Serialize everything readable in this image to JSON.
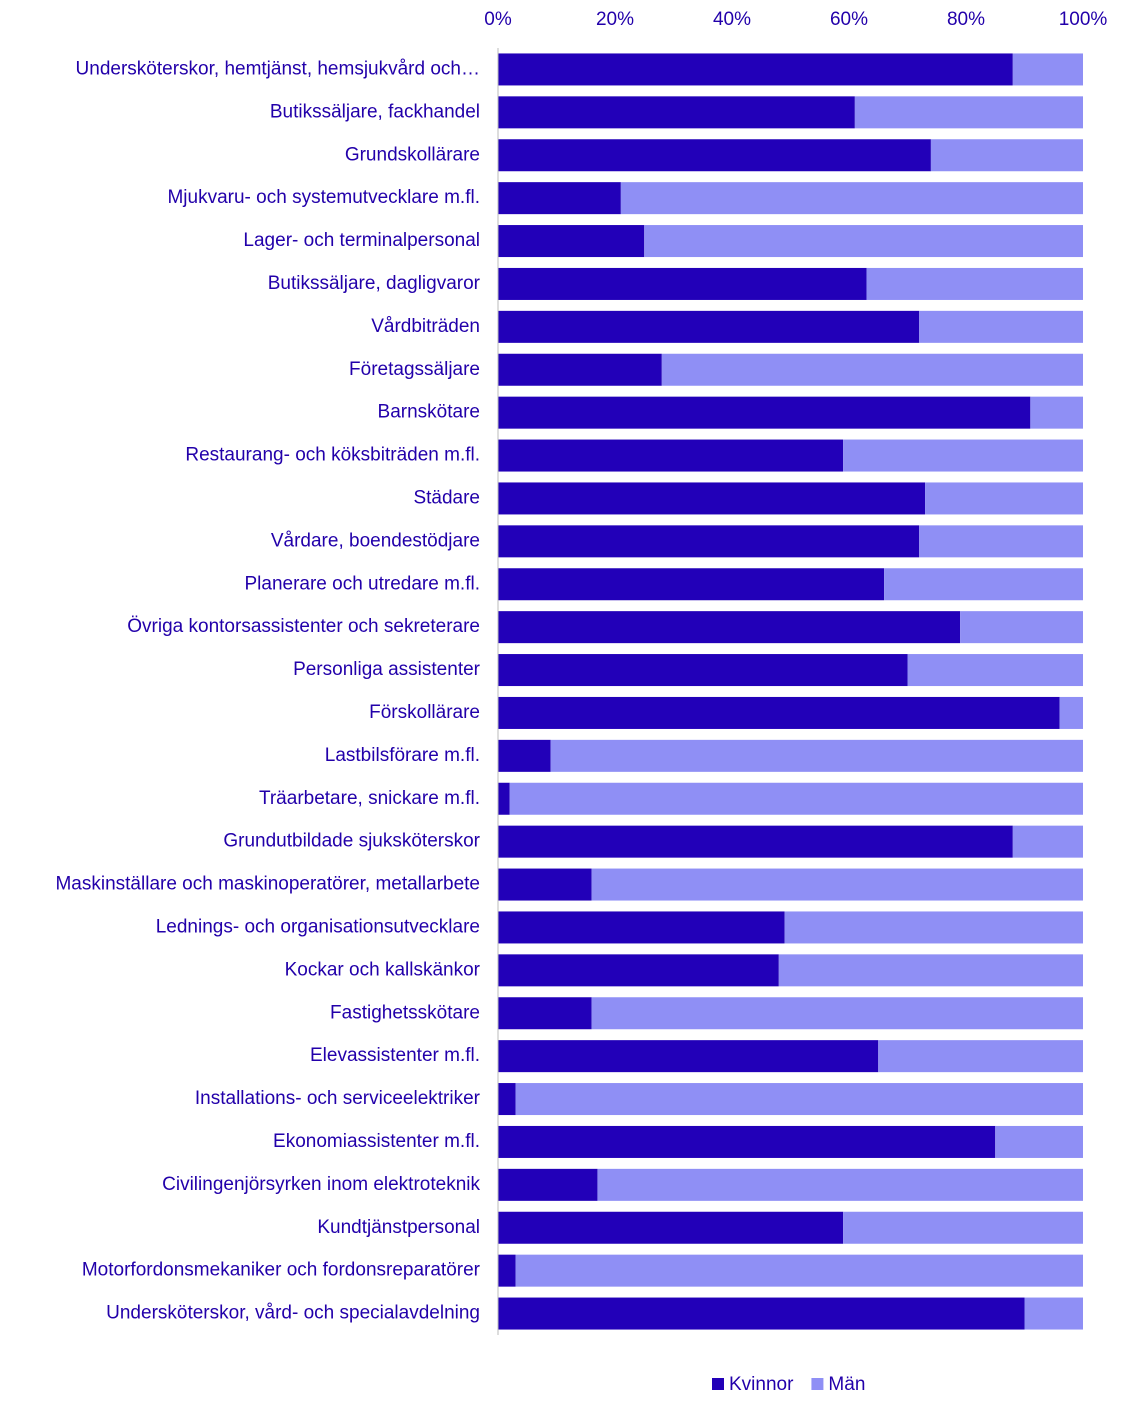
{
  "chart_data": {
    "type": "stacked-barh",
    "categories": [
      "Undersköterskor, hemtjänst, hemsjukvård och…",
      "Butikssäljare, fackhandel",
      "Grundskollärare",
      "Mjukvaru- och systemutvecklare m.fl.",
      "Lager- och terminalpersonal",
      "Butikssäljare, dagligvaror",
      "Vårdbiträden",
      "Företagssäljare",
      "Barnskötare",
      "Restaurang- och köksbiträden m.fl.",
      "Städare",
      "Vårdare, boendestödjare",
      "Planerare och utredare m.fl.",
      "Övriga kontorsassistenter och sekreterare",
      "Personliga assistenter",
      "Förskollärare",
      "Lastbilsförare m.fl.",
      "Träarbetare, snickare m.fl.",
      "Grundutbildade sjuksköterskor",
      "Maskinställare och maskinoperatörer, metallarbete",
      "Lednings- och organisationsutvecklare",
      "Kockar och kallskänkor",
      "Fastighetsskötare",
      "Elevassistenter m.fl.",
      "Installations- och serviceelektriker",
      "Ekonomiassistenter m.fl.",
      "Civilingenjörsyrken inom elektroteknik",
      "Kundtjänstpersonal",
      "Motorfordonsmekaniker och fordonsreparatörer",
      "Undersköterskor, vård- och specialavdelning"
    ],
    "series": [
      {
        "name": "Kvinnor",
        "color": "#2200b8",
        "values": [
          88,
          61,
          74,
          21,
          25,
          63,
          72,
          28,
          91,
          59,
          73,
          72,
          66,
          79,
          70,
          96,
          9,
          2,
          88,
          16,
          49,
          48,
          16,
          65,
          3,
          85,
          17,
          59,
          3,
          90
        ]
      },
      {
        "name": "Män",
        "color": "#8f8ff5",
        "values": [
          12,
          39,
          26,
          79,
          75,
          37,
          28,
          72,
          9,
          41,
          27,
          28,
          34,
          21,
          30,
          4,
          91,
          98,
          12,
          84,
          51,
          52,
          84,
          35,
          97,
          15,
          83,
          41,
          97,
          10
        ]
      }
    ],
    "xlim": [
      0,
      100
    ],
    "xticks": [
      {
        "value": 0,
        "label": "0%"
      },
      {
        "value": 20,
        "label": "20%"
      },
      {
        "value": 40,
        "label": "40%"
      },
      {
        "value": 60,
        "label": "60%"
      },
      {
        "value": 80,
        "label": "80%"
      },
      {
        "value": 100,
        "label": "100%"
      }
    ],
    "legend": "bottom"
  }
}
